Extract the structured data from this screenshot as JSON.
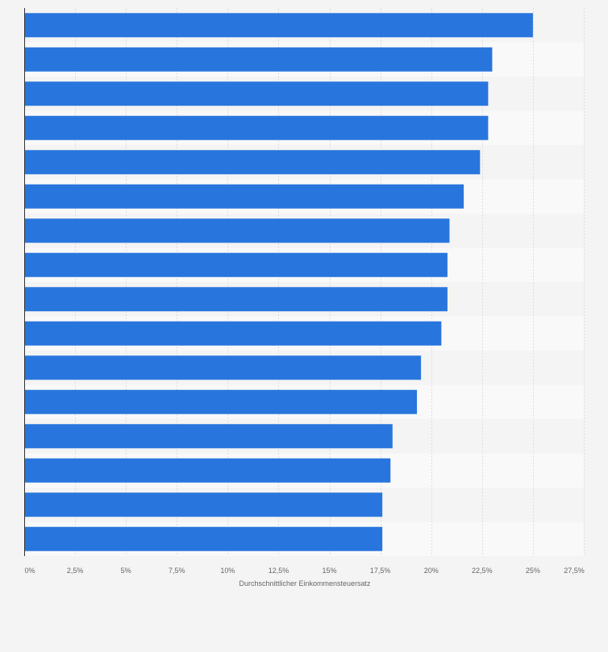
{
  "chart_data": {
    "type": "bar",
    "orientation": "horizontal",
    "title": "",
    "xlabel": "Durchschnittlicher Einkommensteuersatz",
    "ylabel": "",
    "xlim": [
      0,
      27.5
    ],
    "x_ticks": [
      0,
      2.5,
      5,
      7.5,
      10,
      12.5,
      15,
      17.5,
      20,
      22.5,
      25,
      27.5
    ],
    "x_tick_labels": [
      "0%",
      "2,5%",
      "5%",
      "7,5%",
      "10%",
      "12,5%",
      "15%",
      "17,5%",
      "20%",
      "22,5%",
      "25%",
      "27,5%"
    ],
    "categories": [
      "",
      "",
      "",
      "",
      "",
      "",
      "",
      "",
      "",
      "",
      "",
      "",
      "",
      "",
      "",
      ""
    ],
    "values": [
      25.0,
      23.0,
      22.8,
      22.8,
      22.4,
      21.6,
      20.9,
      20.8,
      20.8,
      20.5,
      19.5,
      19.3,
      18.1,
      18.0,
      17.6,
      17.6
    ],
    "grid": true,
    "legend": "none",
    "colors": {
      "bar": "#2876dd",
      "background": "#f4f4f4",
      "band_light": "#f9f9f9",
      "gridline": "#dddddd",
      "axis": "#333333",
      "text": "#666666"
    }
  }
}
